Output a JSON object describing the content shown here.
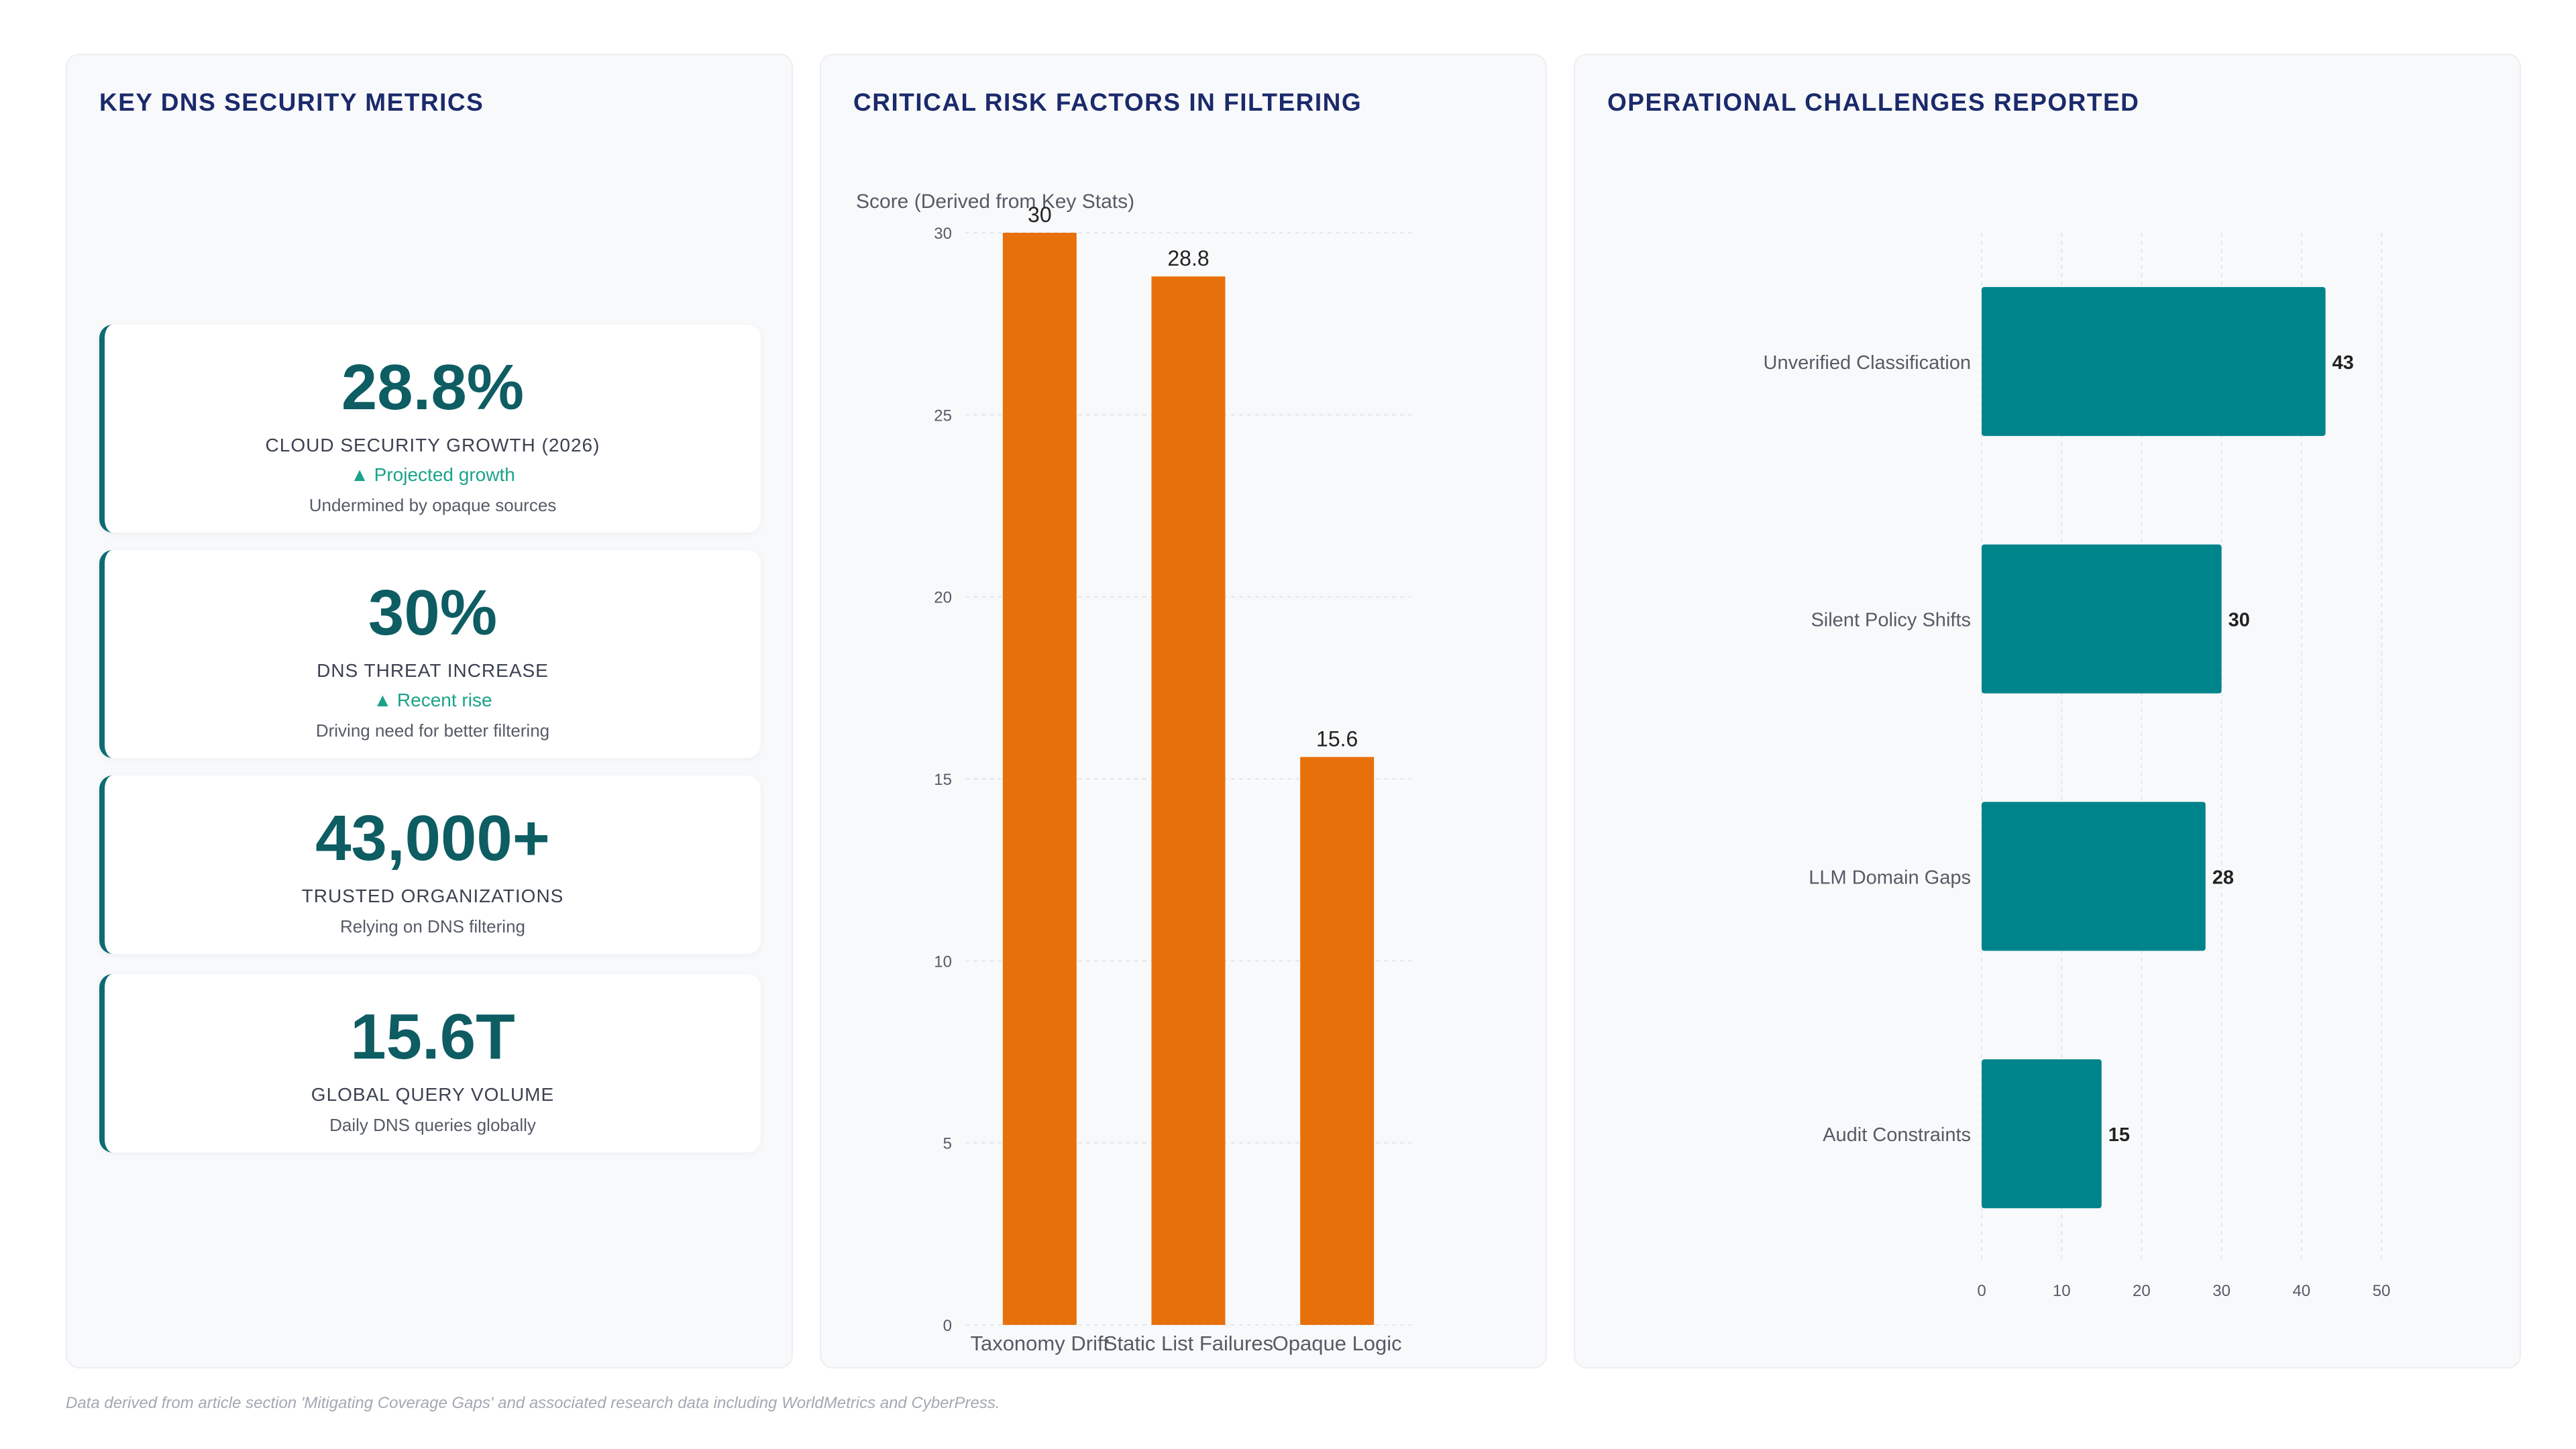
{
  "metrics_panel": {
    "title": "KEY DNS SECURITY METRICS",
    "cards": [
      {
        "value": "28.8%",
        "label": "CLOUD SECURITY GROWTH (2026)",
        "trend": "▲ Projected growth",
        "note": "Undermined by opaque sources"
      },
      {
        "value": "30%",
        "label": "DNS THREAT INCREASE",
        "trend": "▲ Recent rise",
        "note": "Driving need for better filtering"
      },
      {
        "value": "43,000+",
        "label": "TRUSTED ORGANIZATIONS",
        "trend": "",
        "note": "Relying on DNS filtering"
      },
      {
        "value": "15.6T",
        "label": "GLOBAL QUERY VOLUME",
        "trend": "",
        "note": "Daily DNS queries globally"
      }
    ]
  },
  "chart_data": [
    {
      "type": "bar",
      "title": "CRITICAL RISK FACTORS IN FILTERING",
      "ylabel": "Score (Derived from Key Stats)",
      "xlabel": "",
      "categories": [
        "Taxonomy Drift",
        "Static List Failures",
        "Opaque Logic"
      ],
      "values": [
        30,
        28.8,
        15.6
      ],
      "ylim": [
        0,
        30
      ],
      "yticks": [
        0,
        5,
        10,
        15,
        20,
        25,
        30
      ],
      "grid": true,
      "color": "#e8700a",
      "data_labels": true
    },
    {
      "type": "bar",
      "orientation": "horizontal",
      "title": "OPERATIONAL CHALLENGES REPORTED",
      "xlabel": "",
      "ylabel": "",
      "categories": [
        "Unverified Classification",
        "Silent Policy Shifts",
        "LLM Domain Gaps",
        "Audit Constraints"
      ],
      "values": [
        43,
        30,
        28,
        15
      ],
      "xlim": [
        0,
        50
      ],
      "xticks": [
        0,
        10,
        20,
        30,
        40,
        50
      ],
      "grid": true,
      "color": "#00848c",
      "data_labels": true
    }
  ],
  "footer": {
    "note": "Data derived from article section 'Mitigating Coverage Gaps' and associated research data including WorldMetrics and CyberPress."
  }
}
